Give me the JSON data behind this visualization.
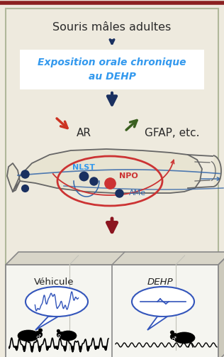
{
  "bg_color": "#eeeade",
  "border_color_top": "#8B2020",
  "border_color_main": "#b0b89a",
  "title": "Souris mâles adultes",
  "exposure_line1": "Exposition orale chronique",
  "exposure_line2": "au DEHP",
  "exposure_color": "#3399EE",
  "exposure_bg": "#d0e8f8",
  "AR_label": "AR",
  "GFAP_label": "GFAP, etc.",
  "NLST_label": "NLST",
  "NPO_label": "NPO",
  "AMe_label": "AMe",
  "dark_blue": "#1a3060",
  "red_arrow": "#cc3322",
  "green_arrow": "#3a5f20",
  "dark_red": "#8B1520",
  "ellipse_red": "#cc3333",
  "blue_dot": "#1a3060",
  "red_dot": "#cc3333",
  "brain_outline": "#666666",
  "brain_fill": "#e8e4d2",
  "blue_line": "#3366aa",
  "vehicule_label": "Véhicule",
  "dehp_label": "DEHP",
  "box_outline": "#888888",
  "box_fill": "#f5f5f0",
  "bubble_blue": "#3355bb"
}
